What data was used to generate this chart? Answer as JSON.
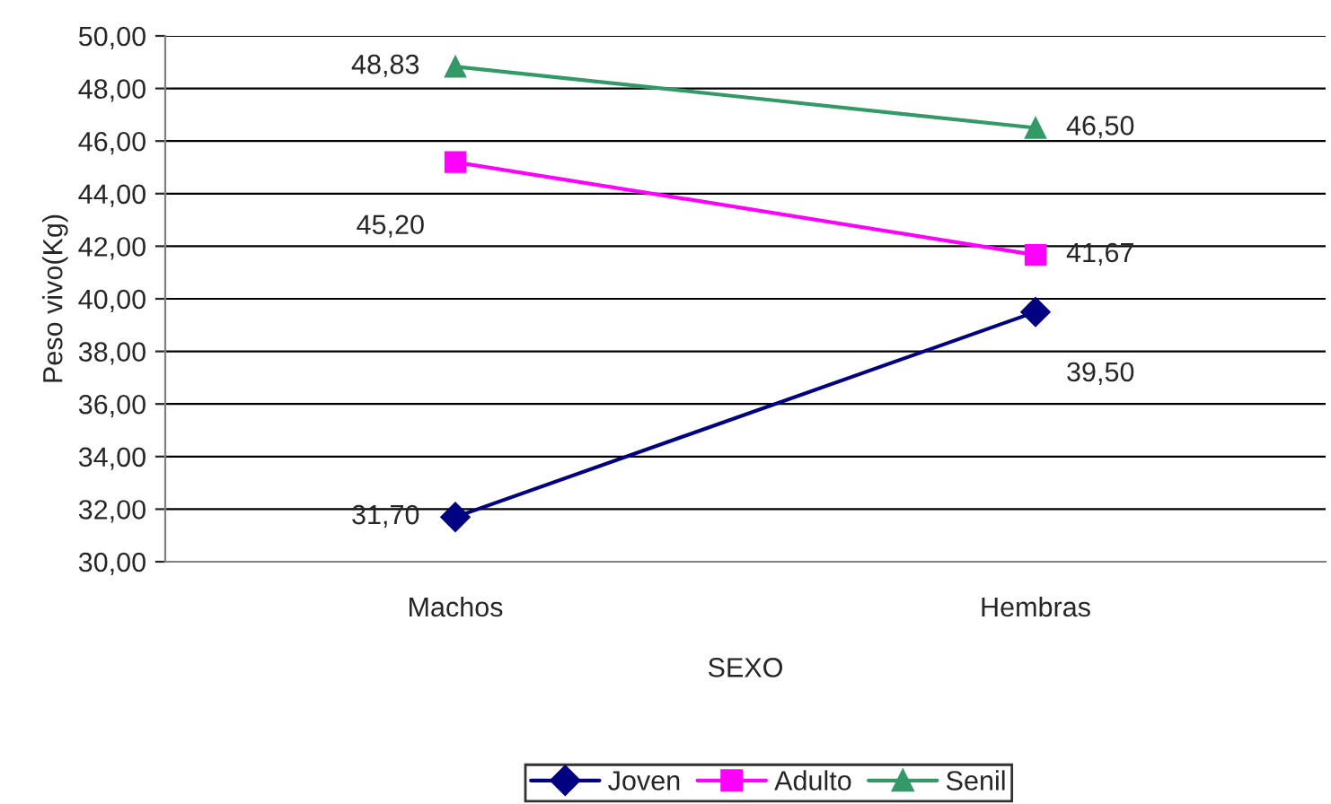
{
  "chart_data": {
    "type": "line",
    "xlabel": "SEXO",
    "ylabel": "Peso vivo(Kg)",
    "categories": [
      "Machos",
      "Hembras"
    ],
    "series": [
      {
        "name": "Joven",
        "color": "#000080",
        "marker": "diamond",
        "values": [
          31.7,
          39.5
        ],
        "value_labels": [
          "31,70",
          "39,50"
        ]
      },
      {
        "name": "Adulto",
        "color": "#ff00ff",
        "marker": "square",
        "values": [
          45.2,
          41.67
        ],
        "value_labels": [
          "45,20",
          "41,67"
        ]
      },
      {
        "name": "Senil",
        "color": "#339966",
        "marker": "triangle",
        "values": [
          48.83,
          46.5
        ],
        "value_labels": [
          "48,83",
          "46,50"
        ]
      }
    ],
    "ylim": [
      30,
      50
    ],
    "yticks": [
      {
        "value": 30,
        "label": "30,00"
      },
      {
        "value": 32,
        "label": "32,00"
      },
      {
        "value": 34,
        "label": "34,00"
      },
      {
        "value": 36,
        "label": "36,00"
      },
      {
        "value": 38,
        "label": "38,00"
      },
      {
        "value": 40,
        "label": "40,00"
      },
      {
        "value": 42,
        "label": "42,00"
      },
      {
        "value": 44,
        "label": "44,00"
      },
      {
        "value": 46,
        "label": "46,00"
      },
      {
        "value": 48,
        "label": "48,00"
      },
      {
        "value": 50,
        "label": "50,00"
      }
    ],
    "grid": "y",
    "legend": "bottom",
    "line_style": "solid"
  }
}
